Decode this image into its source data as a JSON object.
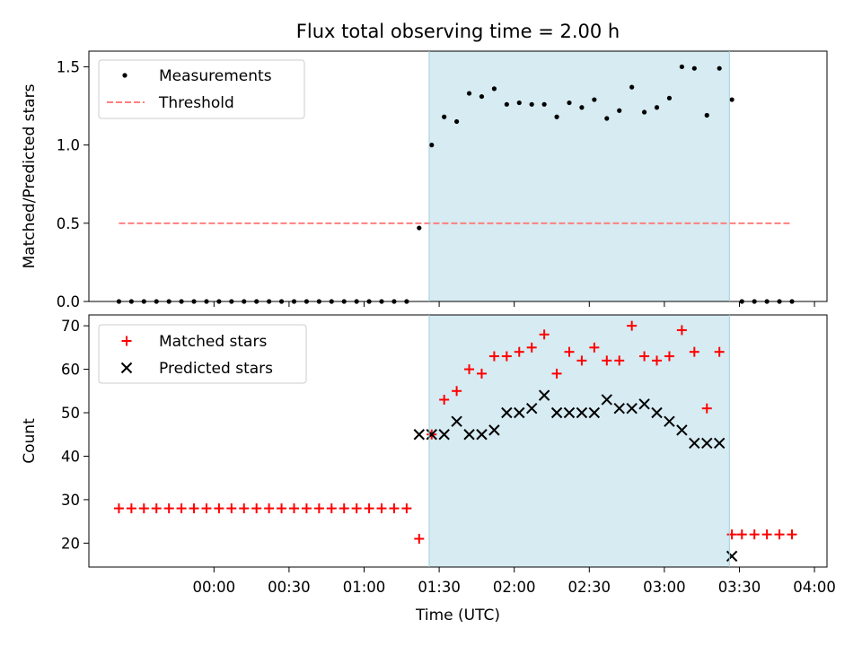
{
  "title": "Flux total observing time = 2.00 h",
  "chart_data": [
    {
      "type": "scatter",
      "ylabel": "Matched/Predicted stars",
      "xlim": [
        "2023-01-01T23:10",
        "2023-01-02T04:05"
      ],
      "ylim": [
        0,
        1.6
      ],
      "y_ticks": [
        "0.0",
        "0.5",
        "1.0",
        "1.5"
      ],
      "legend_position": "upper-left",
      "shaded_interval": [
        "2023-01-02T01:26",
        "2023-01-02T03:26"
      ],
      "threshold": {
        "name": "Threshold",
        "y": 0.5,
        "color": "#ff7f7f",
        "x_range": [
          "2023-01-01T23:22",
          "2023-01-02T03:51"
        ]
      },
      "series": [
        {
          "name": "Measurements",
          "color": "#000000",
          "x": [
            "2023-01-01T23:22",
            "2023-01-01T23:27",
            "2023-01-01T23:32",
            "2023-01-01T23:37",
            "2023-01-01T23:42",
            "2023-01-01T23:47",
            "2023-01-01T23:52",
            "2023-01-01T23:57",
            "2023-01-02T00:02",
            "2023-01-02T00:07",
            "2023-01-02T00:12",
            "2023-01-02T00:17",
            "2023-01-02T00:22",
            "2023-01-02T00:27",
            "2023-01-02T00:32",
            "2023-01-02T00:37",
            "2023-01-02T00:42",
            "2023-01-02T00:47",
            "2023-01-02T00:52",
            "2023-01-02T00:57",
            "2023-01-02T01:02",
            "2023-01-02T01:07",
            "2023-01-02T01:12",
            "2023-01-02T01:17",
            "2023-01-02T01:22",
            "2023-01-02T01:27",
            "2023-01-02T01:32",
            "2023-01-02T01:37",
            "2023-01-02T01:42",
            "2023-01-02T01:47",
            "2023-01-02T01:52",
            "2023-01-02T01:57",
            "2023-01-02T02:02",
            "2023-01-02T02:07",
            "2023-01-02T02:12",
            "2023-01-02T02:17",
            "2023-01-02T02:22",
            "2023-01-02T02:27",
            "2023-01-02T02:32",
            "2023-01-02T02:37",
            "2023-01-02T02:42",
            "2023-01-02T02:47",
            "2023-01-02T02:52",
            "2023-01-02T02:57",
            "2023-01-02T03:02",
            "2023-01-02T03:07",
            "2023-01-02T03:12",
            "2023-01-02T03:17",
            "2023-01-02T03:22",
            "2023-01-02T03:27",
            "2023-01-02T03:31",
            "2023-01-02T03:36",
            "2023-01-02T03:41",
            "2023-01-02T03:46",
            "2023-01-02T03:51"
          ],
          "y": [
            0,
            0,
            0,
            0,
            0,
            0,
            0,
            0,
            0,
            0,
            0,
            0,
            0,
            0,
            0,
            0,
            0,
            0,
            0,
            0,
            0,
            0,
            0,
            0,
            0.47,
            1.0,
            1.18,
            1.15,
            1.33,
            1.31,
            1.36,
            1.26,
            1.27,
            1.26,
            1.26,
            1.18,
            1.27,
            1.24,
            1.29,
            1.17,
            1.22,
            1.37,
            1.21,
            1.24,
            1.3,
            1.5,
            1.49,
            1.19,
            1.49,
            1.29,
            0,
            0,
            0,
            0,
            0
          ]
        }
      ]
    },
    {
      "type": "scatter",
      "xlabel": "Time (UTC)",
      "ylabel": "Count",
      "xlim": [
        "2023-01-01T23:10",
        "2023-01-02T04:05"
      ],
      "ylim": [
        14.5,
        72.5
      ],
      "y_ticks": [
        "20",
        "30",
        "40",
        "50",
        "60",
        "70"
      ],
      "x_ticks": [
        "00:00",
        "00:30",
        "01:00",
        "01:30",
        "02:00",
        "02:30",
        "03:00",
        "03:30",
        "04:00"
      ],
      "legend_position": "upper-left",
      "shaded_interval": [
        "2023-01-02T01:26",
        "2023-01-02T03:26"
      ],
      "series": [
        {
          "name": "Matched stars",
          "marker": "plus",
          "color": "#ff0000",
          "x": [
            "2023-01-01T23:22",
            "2023-01-01T23:27",
            "2023-01-01T23:32",
            "2023-01-01T23:37",
            "2023-01-01T23:42",
            "2023-01-01T23:47",
            "2023-01-01T23:52",
            "2023-01-01T23:57",
            "2023-01-02T00:02",
            "2023-01-02T00:07",
            "2023-01-02T00:12",
            "2023-01-02T00:17",
            "2023-01-02T00:22",
            "2023-01-02T00:27",
            "2023-01-02T00:32",
            "2023-01-02T00:37",
            "2023-01-02T00:42",
            "2023-01-02T00:47",
            "2023-01-02T00:52",
            "2023-01-02T00:57",
            "2023-01-02T01:02",
            "2023-01-02T01:07",
            "2023-01-02T01:12",
            "2023-01-02T01:17",
            "2023-01-02T01:22",
            "2023-01-02T01:27",
            "2023-01-02T01:32",
            "2023-01-02T01:37",
            "2023-01-02T01:42",
            "2023-01-02T01:47",
            "2023-01-02T01:52",
            "2023-01-02T01:57",
            "2023-01-02T02:02",
            "2023-01-02T02:07",
            "2023-01-02T02:12",
            "2023-01-02T02:17",
            "2023-01-02T02:22",
            "2023-01-02T02:27",
            "2023-01-02T02:32",
            "2023-01-02T02:37",
            "2023-01-02T02:42",
            "2023-01-02T02:47",
            "2023-01-02T02:52",
            "2023-01-02T02:57",
            "2023-01-02T03:02",
            "2023-01-02T03:07",
            "2023-01-02T03:12",
            "2023-01-02T03:17",
            "2023-01-02T03:22",
            "2023-01-02T03:27",
            "2023-01-02T03:31",
            "2023-01-02T03:36",
            "2023-01-02T03:41",
            "2023-01-02T03:46",
            "2023-01-02T03:51"
          ],
          "y": [
            28,
            28,
            28,
            28,
            28,
            28,
            28,
            28,
            28,
            28,
            28,
            28,
            28,
            28,
            28,
            28,
            28,
            28,
            28,
            28,
            28,
            28,
            28,
            28,
            21,
            45,
            53,
            55,
            60,
            59,
            63,
            63,
            64,
            65,
            68,
            59,
            64,
            62,
            65,
            62,
            62,
            70,
            63,
            62,
            63,
            69,
            64,
            51,
            64,
            22,
            22,
            22,
            22,
            22,
            22
          ]
        },
        {
          "name": "Predicted stars",
          "marker": "x",
          "color": "#000000",
          "x": [
            "2023-01-02T01:22",
            "2023-01-02T01:27",
            "2023-01-02T01:32",
            "2023-01-02T01:37",
            "2023-01-02T01:42",
            "2023-01-02T01:47",
            "2023-01-02T01:52",
            "2023-01-02T01:57",
            "2023-01-02T02:02",
            "2023-01-02T02:07",
            "2023-01-02T02:12",
            "2023-01-02T02:17",
            "2023-01-02T02:22",
            "2023-01-02T02:27",
            "2023-01-02T02:32",
            "2023-01-02T02:37",
            "2023-01-02T02:42",
            "2023-01-02T02:47",
            "2023-01-02T02:52",
            "2023-01-02T02:57",
            "2023-01-02T03:02",
            "2023-01-02T03:07",
            "2023-01-02T03:12",
            "2023-01-02T03:17",
            "2023-01-02T03:22",
            "2023-01-02T03:27"
          ],
          "y": [
            45,
            45,
            45,
            48,
            45,
            45,
            46,
            50,
            50,
            51,
            54,
            50,
            50,
            50,
            50,
            53,
            51,
            51,
            52,
            50,
            48,
            46,
            43,
            43,
            43,
            17
          ]
        }
      ]
    }
  ]
}
